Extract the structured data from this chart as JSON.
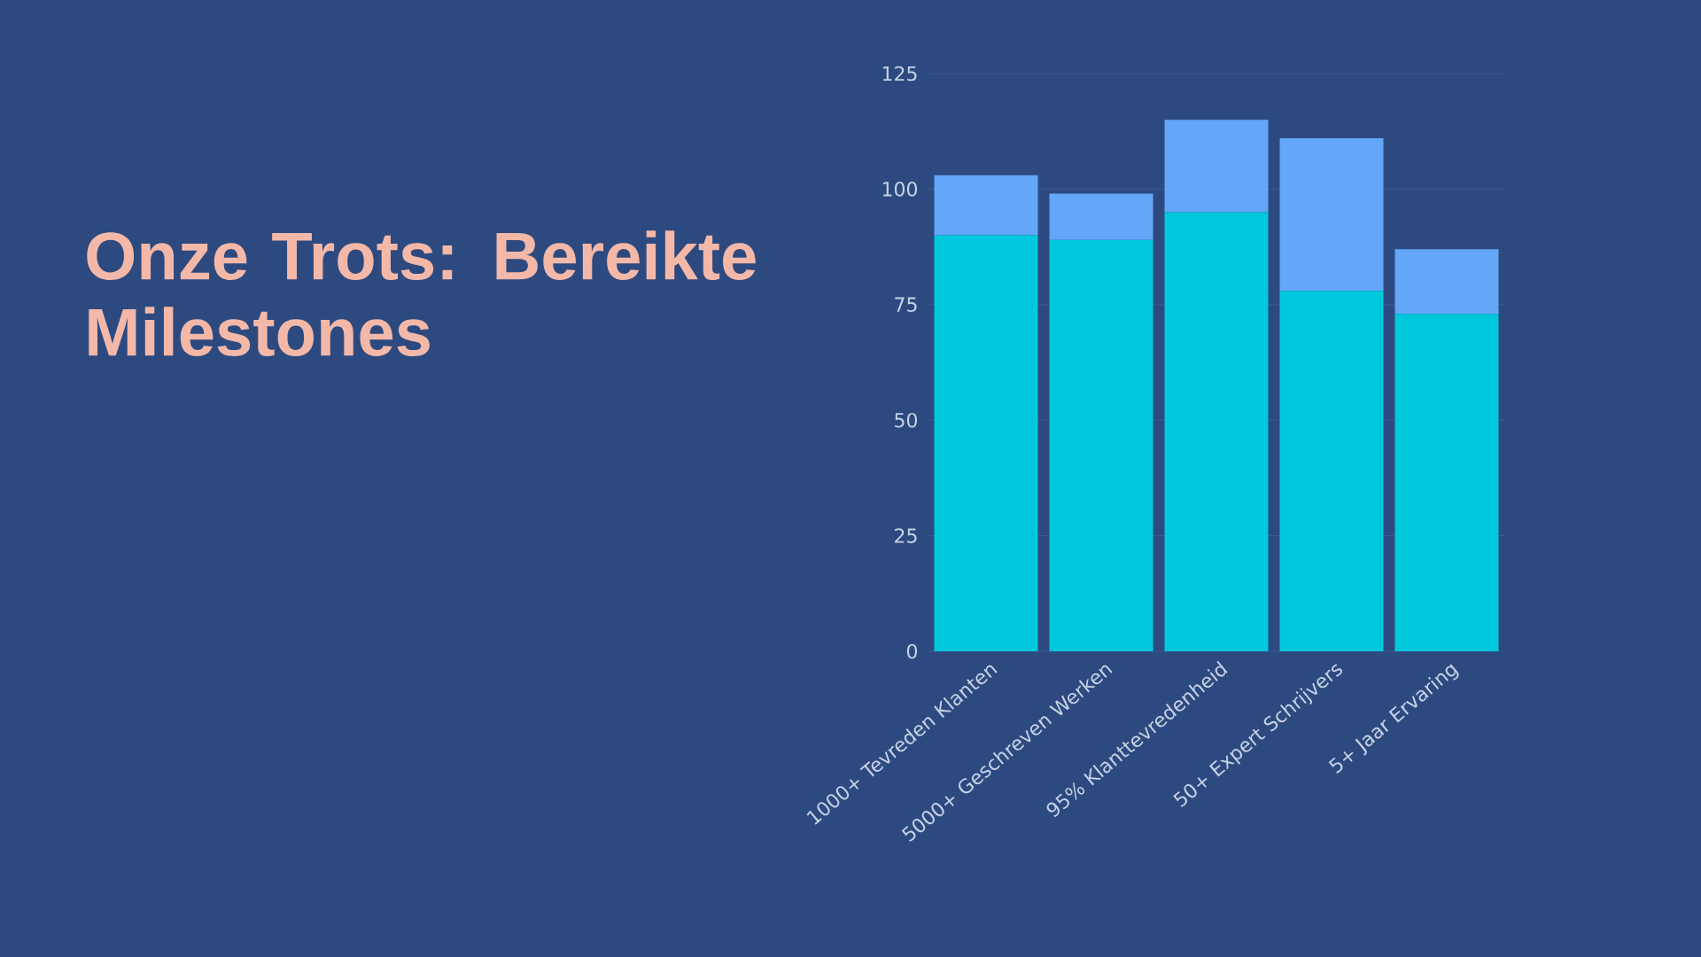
{
  "chart_data": {
    "type": "bar",
    "stacked": true,
    "title": "Onze Trots: Bereikte Milestones",
    "categories": [
      "1000+ Tevreden Klanten",
      "5000+ Geschreven Werken",
      "95% Klanttevredenheid",
      "50+ Expert Schrijvers",
      "5+ Jaar Ervaring"
    ],
    "series": [
      {
        "color": "#00c8dc",
        "values": [
          90,
          89,
          95,
          78,
          73
        ]
      },
      {
        "color": "#64a6f8",
        "values": [
          13,
          10,
          20,
          33,
          14
        ]
      }
    ],
    "ylim": [
      0,
      125
    ],
    "yticks": [
      0,
      25,
      50,
      75,
      100,
      125
    ],
    "grid": "y"
  }
}
